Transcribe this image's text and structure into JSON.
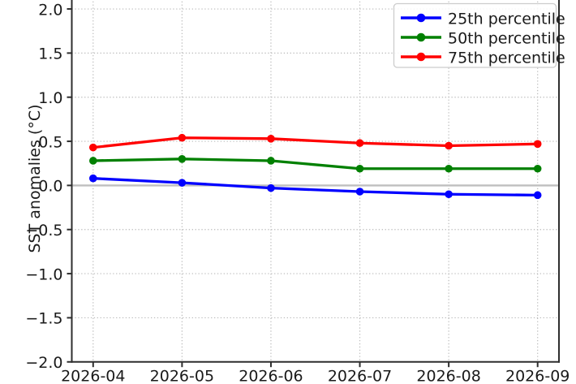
{
  "chart_data": {
    "type": "line",
    "title": "",
    "xlabel": "",
    "ylabel": "SST anomalies (°C)",
    "categories": [
      "2026-04",
      "2026-05",
      "2026-06",
      "2026-07",
      "2026-08",
      "2026-09"
    ],
    "series": [
      {
        "name": "25th percentile",
        "color": "#0000ff",
        "values": [
          0.08,
          0.03,
          -0.03,
          -0.07,
          -0.1,
          -0.11
        ]
      },
      {
        "name": "50th percentile",
        "color": "#008000",
        "values": [
          0.28,
          0.3,
          0.28,
          0.19,
          0.19,
          0.19
        ]
      },
      {
        "name": "75th percentile",
        "color": "#ff0000",
        "values": [
          0.43,
          0.54,
          0.53,
          0.48,
          0.45,
          0.47
        ]
      }
    ],
    "ylim": [
      -2.0,
      2.0
    ],
    "yticks": [
      2.0,
      1.5,
      1.0,
      0.5,
      0.0,
      -0.5,
      -1.0,
      -1.5,
      -2.0
    ],
    "ytick_labels": [
      "2.0",
      "1.5",
      "1.0",
      "0.5",
      "0.0",
      "−0.5",
      "−1.0",
      "−1.5",
      "−2.0"
    ],
    "grid": true,
    "grid_style": "dotted",
    "zero_line": true,
    "legend": {
      "position": "upper right",
      "entries": [
        "25th percentile",
        "50th percentile",
        "75th percentile"
      ]
    },
    "colors": {
      "grid": "#b9b9b9",
      "zero_line": "#bfbfbf",
      "spine": "#2e2e2e",
      "tick": "#2e2e2e",
      "text": "#1a1a1a",
      "legend_border": "#cccccc",
      "legend_fill": "#ffffff",
      "background": "#ffffff"
    }
  }
}
